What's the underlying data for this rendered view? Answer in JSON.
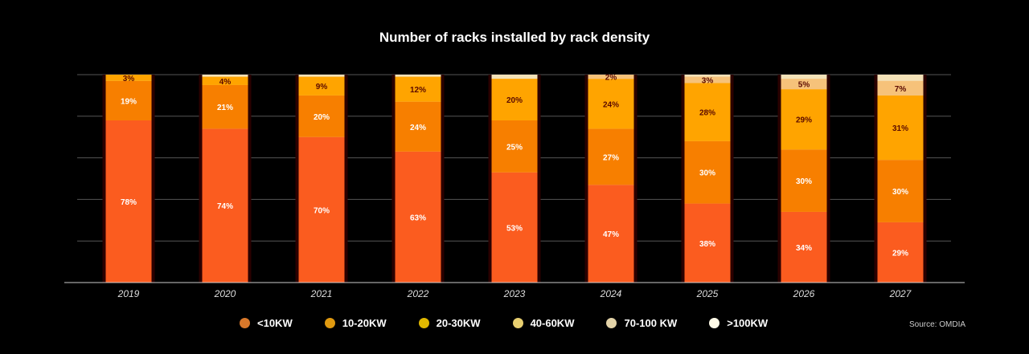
{
  "chart_data": {
    "type": "bar",
    "stacked": true,
    "title": "Number of racks installed by rack density",
    "categories": [
      "2019",
      "2020",
      "2021",
      "2022",
      "2023",
      "2024",
      "2025",
      "2026",
      "2027"
    ],
    "ylim": [
      0,
      100
    ],
    "grid": true,
    "legend_placement": "bottom",
    "series": [
      {
        "name": "<10KW",
        "color": "#fb5c1f",
        "values": [
          78,
          74,
          70,
          63,
          53,
          47,
          38,
          34,
          29
        ]
      },
      {
        "name": "10-20KW",
        "color": "#f77f00",
        "values": [
          19,
          21,
          20,
          24,
          25,
          27,
          30,
          30,
          30
        ]
      },
      {
        "name": "20-30KW",
        "color": "#ffa400",
        "values": [
          3,
          4,
          9,
          12,
          20,
          24,
          28,
          29,
          31
        ]
      },
      {
        "name": "40-60KW",
        "color": "#f6c27a",
        "values": [
          null,
          null,
          null,
          null,
          null,
          2,
          3,
          5,
          7
        ]
      },
      {
        "name": "70-100 KW",
        "color": "#e8d7a8",
        "values": [
          null,
          null,
          null,
          null,
          null,
          null,
          null,
          null,
          null
        ]
      },
      {
        "name": ">100KW",
        "color": "#fffbe8",
        "values": [
          null,
          null,
          null,
          null,
          null,
          null,
          null,
          null,
          null
        ]
      }
    ],
    "legend_dot_colors": [
      "#d9782a",
      "#e09a10",
      "#e0b800",
      "#e8cf70",
      "#e3d3a8",
      "#fffbe8"
    ]
  },
  "source": "Source: OMDIA"
}
